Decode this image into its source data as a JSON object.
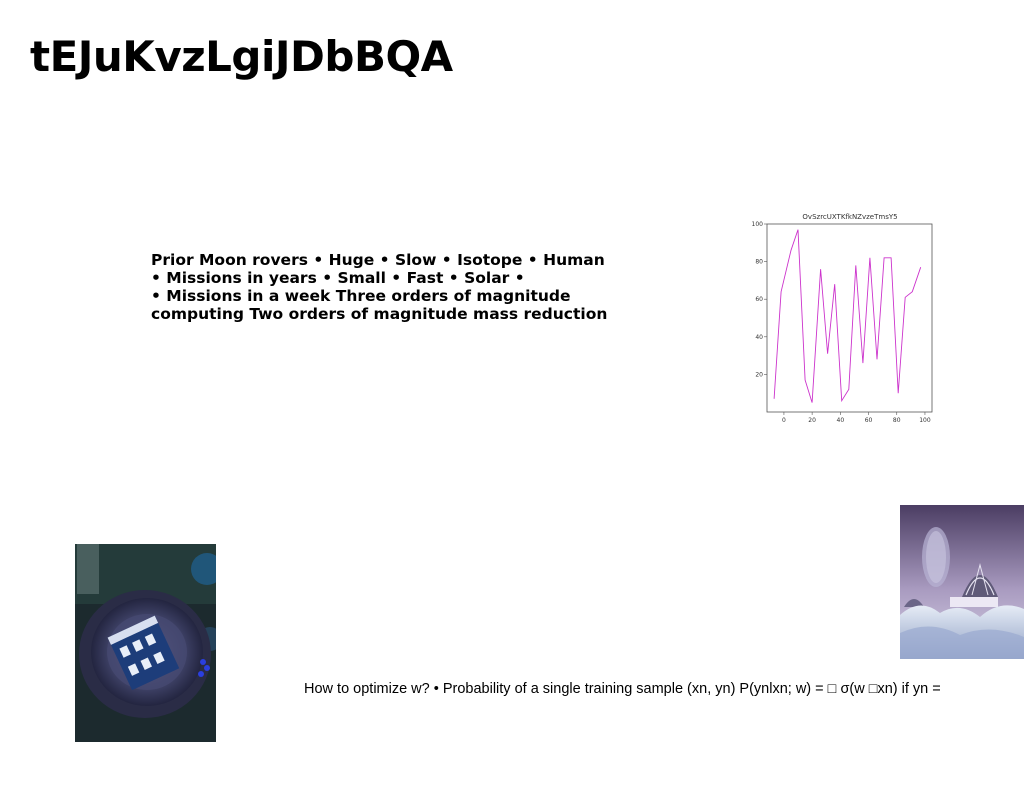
{
  "slide": {
    "title": "tEJuKvzLgiJDbBQA",
    "body_lines": [
      "Prior Moon rovers • Huge • Slow • Isotope • Human",
      "• Missions in years • Small • Fast • Solar •",
      "• Missions in a week Three orders of magnitude",
      "computing Two orders of magnitude mass reduction"
    ],
    "caption": "How to optimize w? • Probability of a single training sample (xn, yn) P(ynlxn; w) = □ σ(w □xn) if yn ="
  },
  "chart_data": {
    "type": "line",
    "title": "OvSzrcUXTKfkNZvzeTmsY5",
    "xlabel": "",
    "ylabel": "",
    "xlim": [
      -12,
      105
    ],
    "ylim": [
      0,
      100
    ],
    "xticks": [
      0,
      20,
      40,
      60,
      80,
      100
    ],
    "yticks": [
      20,
      40,
      60,
      80,
      100
    ],
    "grid": false,
    "series": [
      {
        "color": "#cc33cc",
        "x": [
          -7,
          -2,
          5,
          10,
          15,
          20,
          26,
          31,
          36,
          41,
          46,
          51,
          56,
          61,
          66,
          71,
          76,
          81,
          86,
          91,
          97
        ],
        "y": [
          7,
          64,
          86,
          97,
          17,
          5,
          76,
          31,
          68,
          6,
          12,
          78,
          26,
          82,
          28,
          82,
          82,
          10,
          61,
          64,
          77
        ]
      }
    ]
  }
}
